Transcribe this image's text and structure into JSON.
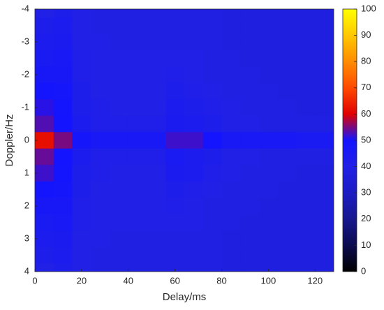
{
  "chart_data": {
    "type": "heatmap",
    "xlabel": "Delay/ms",
    "ylabel": "Doppler/Hz",
    "xlim": [
      0,
      128
    ],
    "xticks": [
      0,
      20,
      40,
      60,
      80,
      100,
      120
    ],
    "ylim": [
      -4,
      4
    ],
    "yticks": [
      -4,
      -3,
      -2,
      -1,
      0,
      1,
      2,
      3,
      4
    ],
    "y_reversed": true,
    "x": [
      4,
      12,
      20,
      28,
      36,
      44,
      52,
      60,
      68,
      76,
      84,
      92,
      100,
      108,
      116,
      124
    ],
    "y": [
      -4,
      -3.5,
      -3,
      -2.5,
      -2,
      -1.5,
      -1,
      -0.5,
      0,
      0.5,
      1,
      1.5,
      2,
      2.5,
      3,
      3.5,
      4
    ],
    "z": [
      [
        40,
        42,
        40,
        39,
        39,
        39,
        39,
        39,
        39,
        39,
        38,
        38,
        38,
        38,
        38,
        38
      ],
      [
        42,
        43,
        40,
        39,
        39,
        39,
        39,
        39,
        39,
        39,
        38,
        38,
        38,
        38,
        38,
        38
      ],
      [
        43,
        44,
        40,
        40,
        39,
        39,
        39,
        39,
        39,
        39,
        38,
        38,
        38,
        38,
        38,
        38
      ],
      [
        45,
        46,
        41,
        40,
        40,
        40,
        40,
        40,
        40,
        39,
        39,
        38,
        38,
        38,
        38,
        38
      ],
      [
        47,
        47,
        41,
        40,
        40,
        40,
        40,
        41,
        40,
        39,
        39,
        39,
        38,
        38,
        38,
        38
      ],
      [
        49,
        48,
        42,
        40,
        40,
        40,
        40,
        42,
        41,
        40,
        39,
        39,
        39,
        38,
        38,
        38
      ],
      [
        51,
        49,
        42,
        41,
        40,
        40,
        40,
        43,
        42,
        41,
        40,
        39,
        39,
        39,
        38,
        38
      ],
      [
        53,
        50,
        43,
        41,
        41,
        41,
        41,
        44,
        43,
        42,
        40,
        40,
        39,
        39,
        39,
        39
      ],
      [
        62,
        55,
        48,
        46,
        46,
        46,
        46,
        52,
        52,
        50,
        46,
        46,
        46,
        46,
        45,
        45
      ],
      [
        54,
        50,
        43,
        41,
        41,
        41,
        41,
        45,
        43,
        42,
        40,
        40,
        39,
        39,
        39,
        39
      ],
      [
        52,
        49,
        42,
        41,
        40,
        40,
        40,
        44,
        43,
        41,
        40,
        39,
        39,
        39,
        38,
        38
      ],
      [
        49,
        48,
        42,
        40,
        40,
        40,
        40,
        42,
        41,
        40,
        39,
        39,
        39,
        38,
        38,
        38
      ],
      [
        47,
        47,
        41,
        40,
        40,
        40,
        40,
        41,
        40,
        39,
        39,
        39,
        38,
        38,
        38,
        38
      ],
      [
        45,
        46,
        41,
        40,
        40,
        40,
        40,
        40,
        40,
        39,
        39,
        38,
        38,
        38,
        38,
        38
      ],
      [
        43,
        44,
        40,
        40,
        39,
        39,
        39,
        39,
        39,
        39,
        38,
        38,
        38,
        38,
        38,
        38
      ],
      [
        42,
        43,
        40,
        39,
        39,
        39,
        39,
        39,
        39,
        39,
        38,
        38,
        38,
        38,
        38,
        38
      ],
      [
        40,
        42,
        40,
        39,
        39,
        39,
        39,
        39,
        39,
        39,
        38,
        38,
        38,
        38,
        38,
        38
      ]
    ],
    "clim": [
      0,
      100
    ],
    "cticks": [
      0,
      10,
      20,
      30,
      40,
      50,
      60,
      70,
      80,
      90,
      100
    ],
    "colorscale": [
      "#000000",
      "#0b0b4f",
      "#17178f",
      "#1c1cc4",
      "#2020e6",
      "#1414ff",
      "#e00000",
      "#ff4a00",
      "#ff8c00",
      "#ffc800",
      "#ffff00"
    ]
  }
}
